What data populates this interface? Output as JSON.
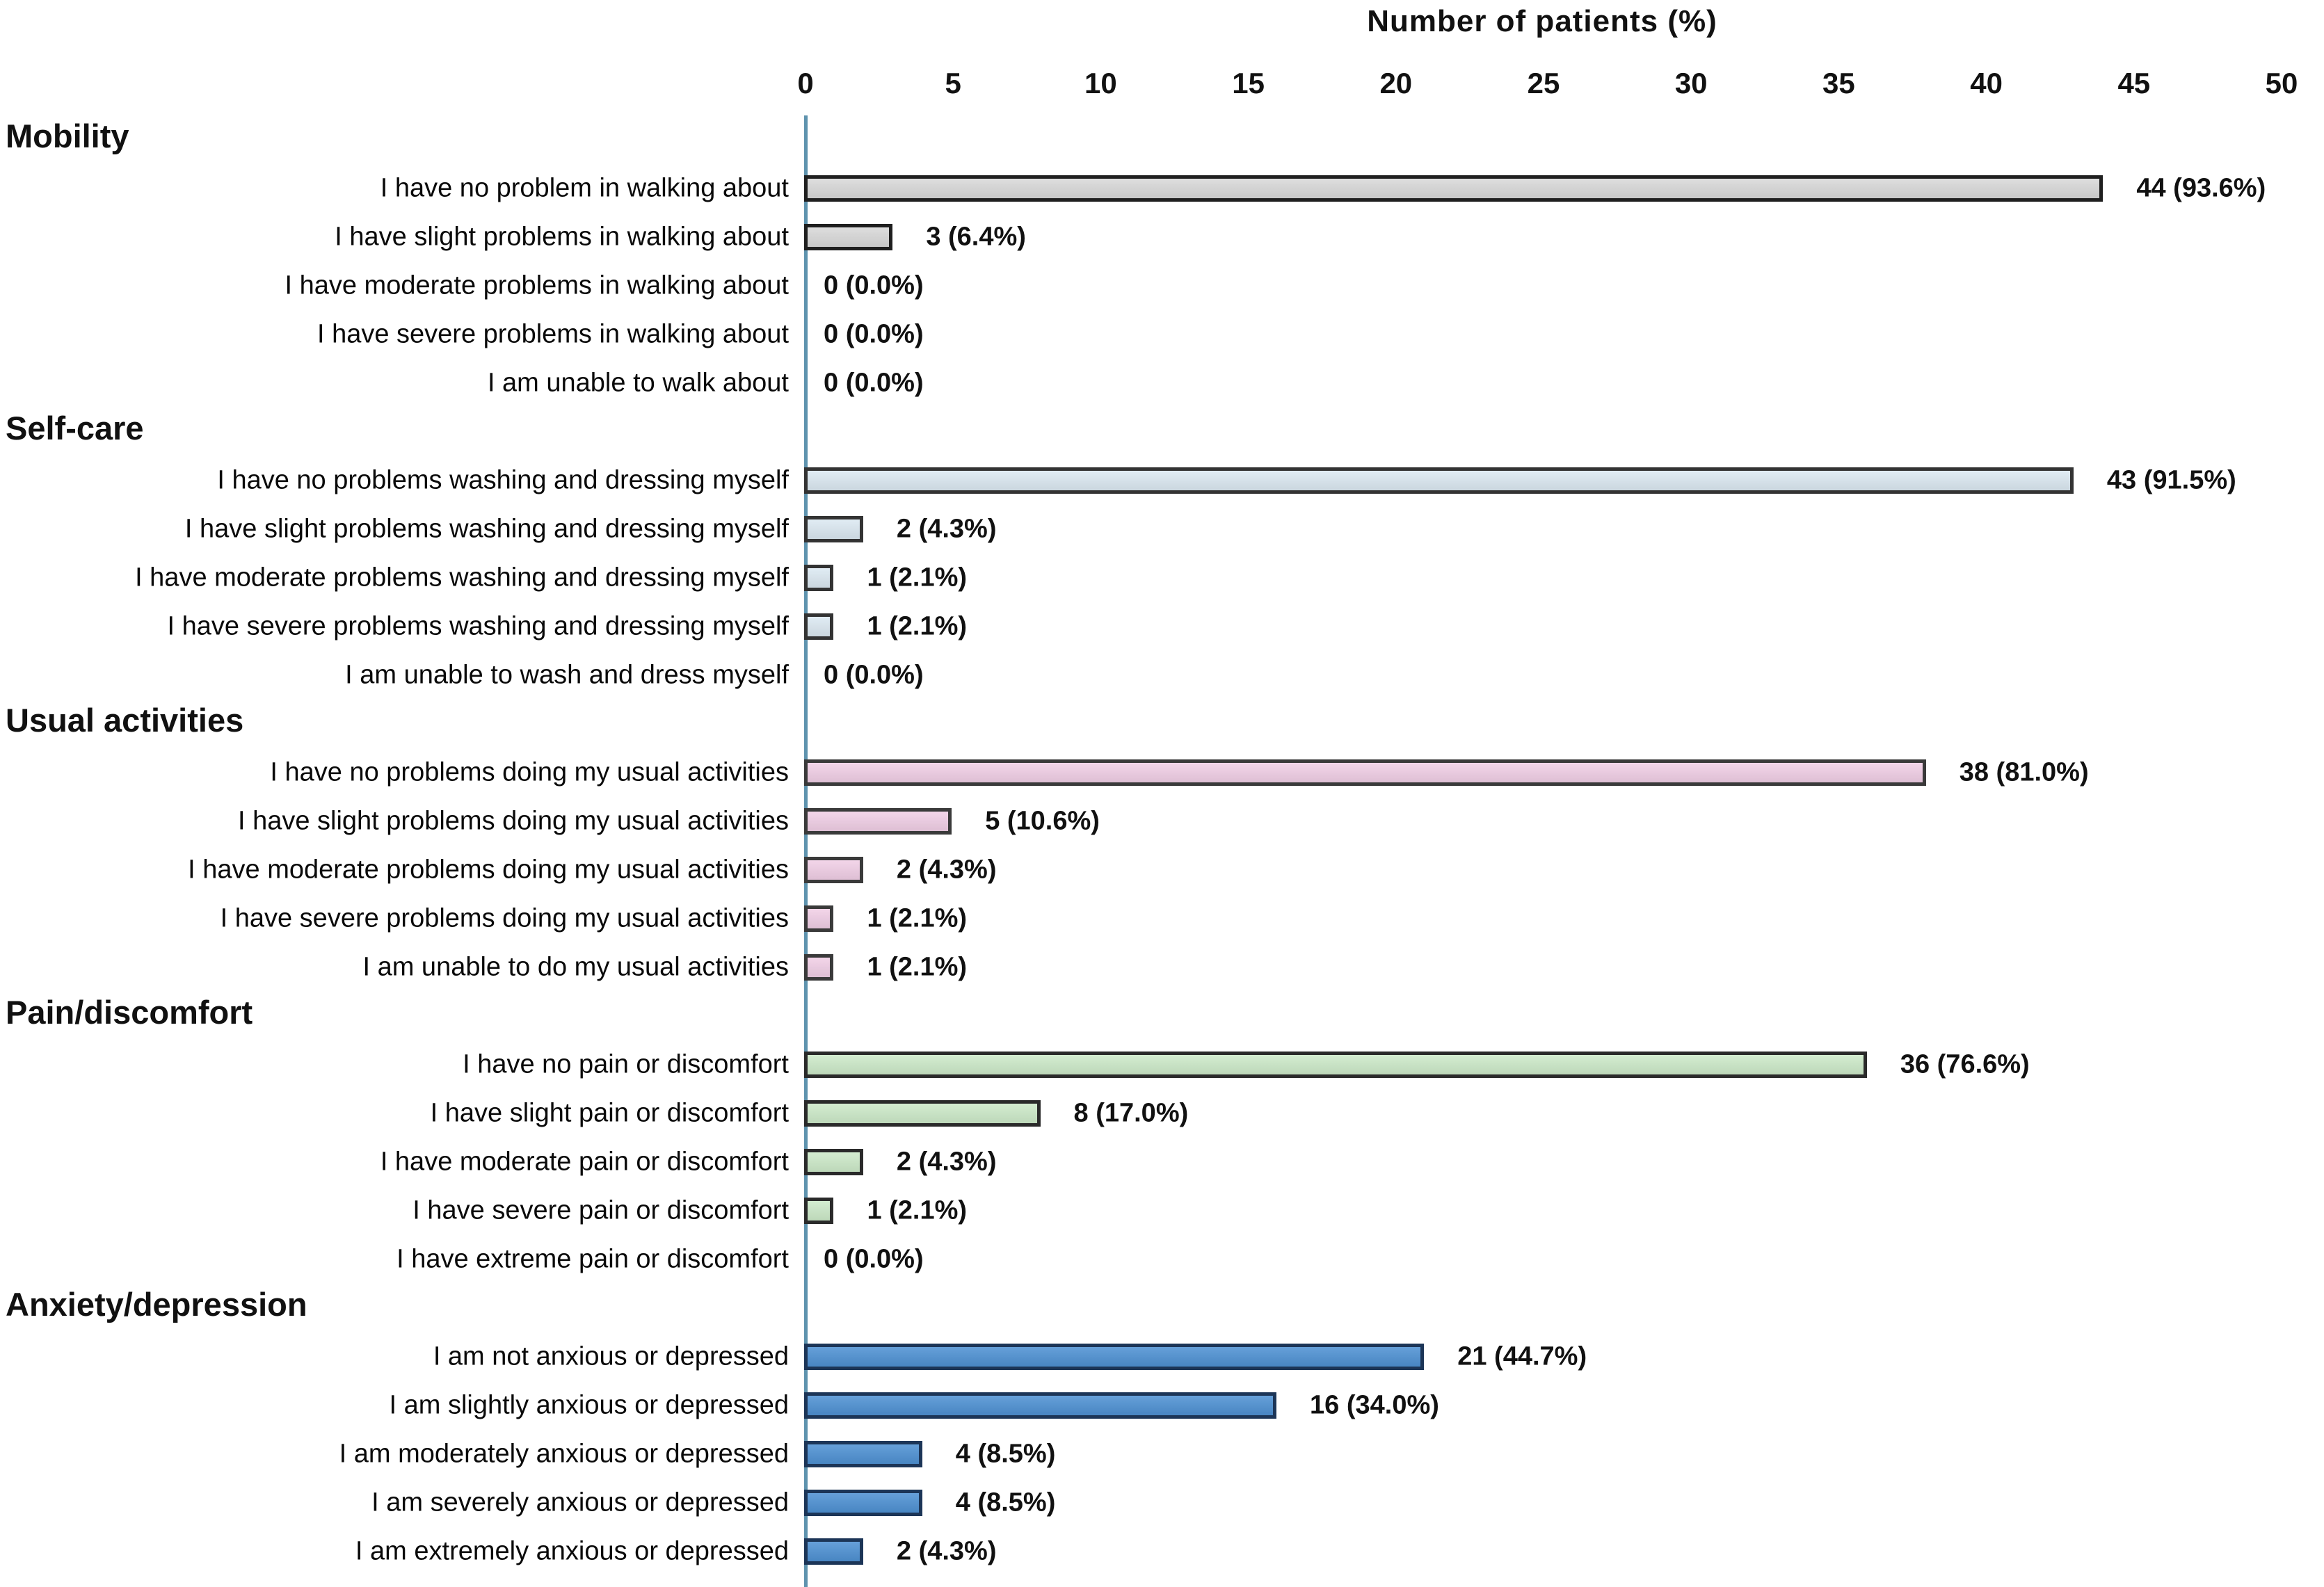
{
  "figure": {
    "axis_title": "Number of patients (%)"
  },
  "chart_data": {
    "type": "bar",
    "orientation": "horizontal",
    "title": "Number of patients (%)",
    "xlabel": "Number of patients (%)",
    "xlim": [
      0,
      50
    ],
    "ticks": [
      0,
      5,
      10,
      15,
      20,
      25,
      30,
      35,
      40,
      45,
      50
    ],
    "grid": false,
    "legend": false,
    "baseline_color": "#5e93ae",
    "sections": [
      {
        "name": "Mobility",
        "fill": "#d9d9d9",
        "border": "#1f1f1f",
        "rows": [
          {
            "label": "I have no problem in walking about",
            "count": 44,
            "pct": 93.6,
            "value_label": "44 (93.6%)"
          },
          {
            "label": "I have slight problems in walking about",
            "count": 3,
            "pct": 6.4,
            "value_label": "3 (6.4%)"
          },
          {
            "label": "I have moderate problems in walking about",
            "count": 0,
            "pct": 0.0,
            "value_label": "0 (0.0%)"
          },
          {
            "label": "I have severe problems in walking about",
            "count": 0,
            "pct": 0.0,
            "value_label": "0 (0.0%)"
          },
          {
            "label": "I am unable to walk about",
            "count": 0,
            "pct": 0.0,
            "value_label": "0 (0.0%)"
          }
        ]
      },
      {
        "name": "Self-care",
        "fill": "#dce9f2",
        "border": "#333333",
        "rows": [
          {
            "label": "I have no problems washing and dressing myself",
            "count": 43,
            "pct": 91.5,
            "value_label": "43 (91.5%)"
          },
          {
            "label": "I have slight problems washing and dressing myself",
            "count": 2,
            "pct": 4.3,
            "value_label": "2 (4.3%)"
          },
          {
            "label": "I have moderate problems washing and dressing myself",
            "count": 1,
            "pct": 2.1,
            "value_label": "1 (2.1%)"
          },
          {
            "label": "I have severe problems washing and dressing myself",
            "count": 1,
            "pct": 2.1,
            "value_label": "1 (2.1%)"
          },
          {
            "label": "I am unable to wash and dress myself",
            "count": 0,
            "pct": 0.0,
            "value_label": "0 (0.0%)"
          }
        ]
      },
      {
        "name": "Usual activities",
        "fill": "#f1cfe6",
        "border": "#3a3a3a",
        "rows": [
          {
            "label": "I have no problems doing my usual activities",
            "count": 38,
            "pct": 81.0,
            "value_label": "38 (81.0%)"
          },
          {
            "label": "I have slight problems doing my usual activities",
            "count": 5,
            "pct": 10.6,
            "value_label": "5 (10.6%)"
          },
          {
            "label": "I have moderate problems doing my usual activities",
            "count": 2,
            "pct": 4.3,
            "value_label": "2 (4.3%)"
          },
          {
            "label": "I have severe problems doing my usual activities",
            "count": 1,
            "pct": 2.1,
            "value_label": "1 (2.1%)"
          },
          {
            "label": "I am unable to do my usual activities",
            "count": 1,
            "pct": 2.1,
            "value_label": "1 (2.1%)"
          }
        ]
      },
      {
        "name": "Pain/discomfort",
        "fill": "#cdeac9",
        "border": "#2a2a2a",
        "rows": [
          {
            "label": "I have no pain or discomfort",
            "count": 36,
            "pct": 76.6,
            "value_label": "36 (76.6%)"
          },
          {
            "label": "I have slight pain or discomfort",
            "count": 8,
            "pct": 17.0,
            "value_label": "8 (17.0%)"
          },
          {
            "label": "I have moderate pain or discomfort",
            "count": 2,
            "pct": 4.3,
            "value_label": "2 (4.3%)"
          },
          {
            "label": "I have severe pain or discomfort",
            "count": 1,
            "pct": 2.1,
            "value_label": "1 (2.1%)"
          },
          {
            "label": "I have extreme pain or discomfort",
            "count": 0,
            "pct": 0.0,
            "value_label": "0 (0.0%)"
          }
        ]
      },
      {
        "name": "Anxiety/depression",
        "fill": "#4e91d3",
        "border": "#1c3557",
        "rows": [
          {
            "label": "I am not anxious or depressed",
            "count": 21,
            "pct": 44.7,
            "value_label": "21 (44.7%)"
          },
          {
            "label": "I am slightly anxious or depressed",
            "count": 16,
            "pct": 34.0,
            "value_label": "16 (34.0%)"
          },
          {
            "label": "I am moderately anxious or depressed",
            "count": 4,
            "pct": 8.5,
            "value_label": "4 (8.5%)"
          },
          {
            "label": "I am severely anxious or depressed",
            "count": 4,
            "pct": 8.5,
            "value_label": "4 (8.5%)"
          },
          {
            "label": "I am extremely anxious or depressed",
            "count": 2,
            "pct": 4.3,
            "value_label": "2 (4.3%)"
          }
        ]
      }
    ]
  }
}
